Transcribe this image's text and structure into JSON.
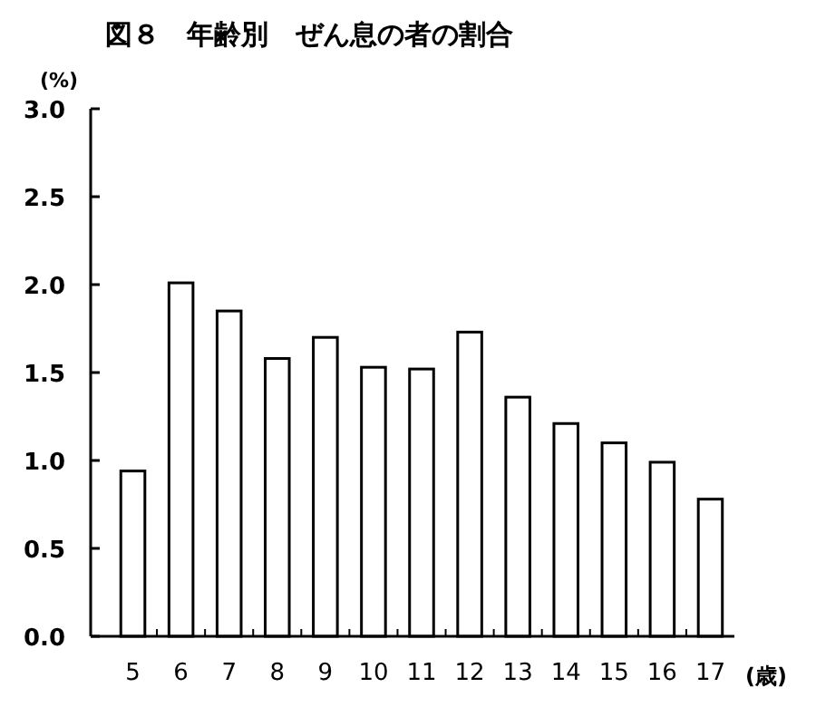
{
  "chart_data": {
    "type": "bar",
    "title": "図８　年齢別　ぜん息の者の割合",
    "ylabel": "(%)",
    "xlabel": "(歳)",
    "categories": [
      "5",
      "6",
      "7",
      "8",
      "9",
      "10",
      "11",
      "12",
      "13",
      "14",
      "15",
      "16",
      "17"
    ],
    "values": [
      0.94,
      2.01,
      1.85,
      1.58,
      1.7,
      1.53,
      1.52,
      1.73,
      1.36,
      1.21,
      1.1,
      0.99,
      0.78
    ],
    "color": "#ffffff",
    "ylim": [
      0,
      3
    ],
    "yticks": [
      {
        "value": 0,
        "label": "0.0"
      },
      {
        "value": 0.5,
        "label": "0.5"
      },
      {
        "value": 1,
        "label": "1.0"
      },
      {
        "value": 1.5,
        "label": "1.5"
      },
      {
        "value": 2,
        "label": "2.0"
      },
      {
        "value": 2.5,
        "label": "2.5"
      },
      {
        "value": 3,
        "label": "3.0"
      }
    ],
    "grid": false
  }
}
